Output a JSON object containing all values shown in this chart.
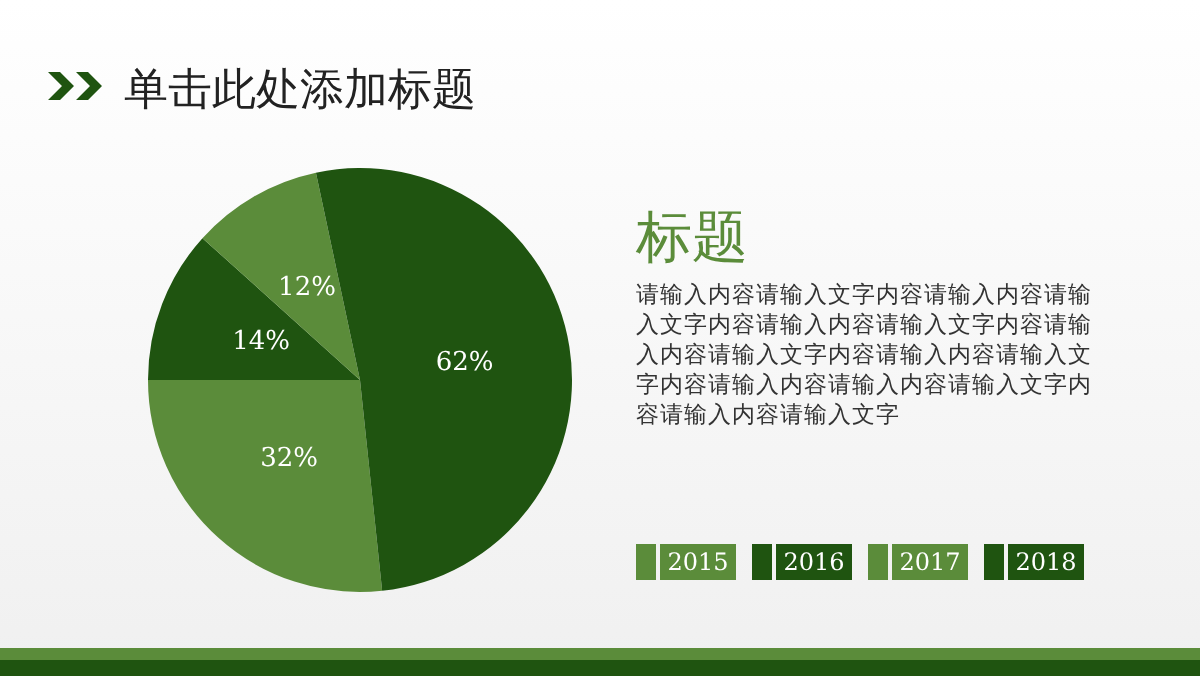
{
  "chart_data": {
    "type": "pie",
    "title": "单击此处添加标题",
    "categories": [
      "2015",
      "2016",
      "2017",
      "2018"
    ],
    "values": [
      32,
      14,
      12,
      62
    ],
    "value_labels": [
      "32%",
      "14%",
      "12%",
      "62%"
    ],
    "colors": [
      "#5b8c3a",
      "#1f5410",
      "#5b8c3a",
      "#1f5410"
    ],
    "legend": "right",
    "annotations": [
      "标题",
      "请输入内容请输入文字内容请输入内容请输入文字内容请输入内容请输入文字内容请输入内容请输入文字内容请输入内容请输入文字内容请输入内容请输入内容请输入文字内容请输入内容请输入文字"
    ]
  }
}
